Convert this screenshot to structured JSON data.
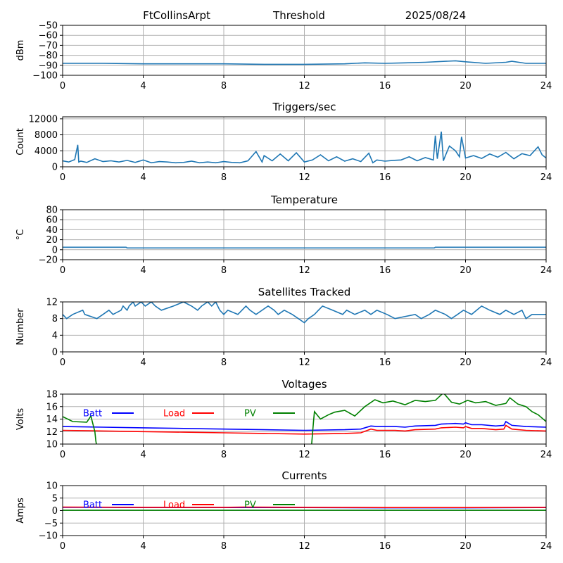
{
  "header": {
    "station": "FtCollinsArpt",
    "mode": "Threshold",
    "date": "2025/08/24"
  },
  "colors": {
    "series": "#1f77b4",
    "batt": "#0000ff",
    "load": "#ff0000",
    "pv": "#008000",
    "grid": "#b0b0b0"
  },
  "chart_data": [
    {
      "id": "threshold",
      "type": "line",
      "title": "",
      "xlabel": "",
      "ylabel": "dBm",
      "xlim": [
        0,
        24
      ],
      "ylim": [
        -100,
        -50
      ],
      "xticks": [
        0,
        4,
        8,
        12,
        16,
        20,
        24
      ],
      "yticks": [
        -100,
        -90,
        -80,
        -70,
        -60,
        -50
      ],
      "grid": true,
      "series": [
        {
          "color": "#1f77b4",
          "x": [
            0,
            2,
            4,
            6,
            8,
            10,
            12,
            14,
            15,
            16,
            17,
            18,
            19,
            19.5,
            20,
            21,
            22,
            22.3,
            23,
            24
          ],
          "y": [
            -88,
            -88,
            -88.5,
            -88.5,
            -88.5,
            -89,
            -89,
            -88.5,
            -87.5,
            -88,
            -87.5,
            -87,
            -86,
            -85.5,
            -86.5,
            -88,
            -87,
            -86,
            -88,
            -88
          ]
        }
      ]
    },
    {
      "id": "triggers",
      "type": "line",
      "title": "Triggers/sec",
      "xlabel": "",
      "ylabel": "Count",
      "xlim": [
        0,
        24
      ],
      "ylim": [
        0,
        12500
      ],
      "xticks": [
        0,
        4,
        8,
        12,
        16,
        20,
        24
      ],
      "yticks": [
        0,
        4000,
        8000,
        12000
      ],
      "grid": true,
      "series": [
        {
          "color": "#1f77b4",
          "x": [
            0,
            0.3,
            0.6,
            0.75,
            0.8,
            0.9,
            1.2,
            1.6,
            2.0,
            2.4,
            2.8,
            3.2,
            3.6,
            4.0,
            4.4,
            4.8,
            5.2,
            5.6,
            6.0,
            6.4,
            6.8,
            7.2,
            7.6,
            8.0,
            8.4,
            8.8,
            9.2,
            9.6,
            9.9,
            10.0,
            10.4,
            10.8,
            11.2,
            11.6,
            12.0,
            12.4,
            12.8,
            13.2,
            13.6,
            14.0,
            14.4,
            14.8,
            15.2,
            15.4,
            15.6,
            16.0,
            16.4,
            16.8,
            17.2,
            17.6,
            18.0,
            18.4,
            18.5,
            18.6,
            18.8,
            18.9,
            19.0,
            19.2,
            19.5,
            19.7,
            19.8,
            20.0,
            20.4,
            20.8,
            21.2,
            21.6,
            22.0,
            22.4,
            22.8,
            23.2,
            23.6,
            23.8,
            24.0
          ],
          "y": [
            1500,
            1200,
            1800,
            5500,
            1200,
            1400,
            1100,
            2000,
            1300,
            1500,
            1200,
            1600,
            1100,
            1700,
            1000,
            1300,
            1200,
            1000,
            1100,
            1400,
            1000,
            1200,
            1000,
            1300,
            1100,
            1000,
            1500,
            3800,
            1200,
            2800,
            1500,
            3200,
            1500,
            3500,
            1200,
            1700,
            3000,
            1500,
            2500,
            1400,
            2000,
            1300,
            3400,
            1000,
            1700,
            1400,
            1600,
            1700,
            2500,
            1500,
            2300,
            1700,
            7800,
            2000,
            8800,
            1500,
            2800,
            5200,
            4000,
            2500,
            7500,
            2200,
            2800,
            2100,
            3200,
            2400,
            3600,
            2000,
            3300,
            2800,
            5000,
            3000,
            2200
          ]
        }
      ]
    },
    {
      "id": "temperature",
      "type": "line",
      "title": "Temperature",
      "xlabel": "",
      "ylabel": "°C",
      "xlim": [
        0,
        24
      ],
      "ylim": [
        -20,
        80
      ],
      "xticks": [
        0,
        4,
        8,
        12,
        16,
        20,
        24
      ],
      "yticks": [
        -20,
        0,
        20,
        40,
        60,
        80
      ],
      "grid": true,
      "series": [
        {
          "color": "#1f77b4",
          "x": [
            0,
            3.15,
            3.2,
            18.45,
            18.5,
            24
          ],
          "y": [
            5,
            5,
            3.5,
            3.5,
            5,
            5
          ]
        }
      ]
    },
    {
      "id": "satellites",
      "type": "line",
      "title": "Satellites Tracked",
      "xlabel": "",
      "ylabel": "Number",
      "xlim": [
        0,
        24
      ],
      "ylim": [
        0,
        12
      ],
      "xticks": [
        0,
        4,
        8,
        12,
        16,
        20,
        24
      ],
      "yticks": [
        0,
        4,
        8,
        12
      ],
      "grid": true,
      "series": [
        {
          "color": "#1f77b4",
          "x": [
            0,
            0.2,
            0.5,
            1.0,
            1.1,
            1.7,
            2.0,
            2.3,
            2.5,
            2.9,
            3.0,
            3.2,
            3.3,
            3.5,
            3.6,
            3.9,
            4.1,
            4.4,
            4.6,
            4.9,
            5.5,
            6.0,
            6.4,
            6.7,
            6.9,
            7.2,
            7.4,
            7.6,
            7.8,
            8.0,
            8.2,
            8.7,
            9.1,
            9.3,
            9.6,
            10.2,
            10.5,
            10.7,
            11.0,
            11.4,
            11.7,
            12.0,
            12.2,
            12.5,
            12.7,
            12.9,
            13.4,
            13.9,
            14.1,
            14.5,
            15.0,
            15.3,
            15.6,
            16.1,
            16.5,
            17.5,
            17.8,
            18.2,
            18.5,
            19.0,
            19.3,
            19.6,
            19.9,
            20.3,
            20.8,
            21.2,
            21.7,
            22.0,
            22.4,
            22.8,
            23.0,
            23.3,
            23.6,
            24.0
          ],
          "y": [
            9,
            8,
            9,
            10,
            9,
            8,
            9,
            10,
            9,
            10,
            11,
            10,
            11,
            12,
            11,
            12,
            11,
            12,
            11,
            10,
            11,
            12,
            11,
            10,
            11,
            12,
            11,
            12,
            10,
            9,
            10,
            9,
            11,
            10,
            9,
            11,
            10,
            9,
            10,
            9,
            8,
            7,
            8,
            9,
            10,
            11,
            10,
            9,
            10,
            9,
            10,
            9,
            10,
            9,
            8,
            9,
            8,
            9,
            10,
            9,
            8,
            9,
            10,
            9,
            11,
            10,
            9,
            10,
            9,
            10,
            8,
            9,
            9,
            9
          ]
        }
      ]
    },
    {
      "id": "voltages",
      "type": "line",
      "title": "Voltages",
      "xlabel": "",
      "ylabel": "Volts",
      "xlim": [
        0,
        24
      ],
      "ylim": [
        10,
        18
      ],
      "xticks": [
        0,
        4,
        8,
        12,
        16,
        20,
        24
      ],
      "yticks": [
        10,
        12,
        14,
        16,
        18
      ],
      "grid": true,
      "legend": "upper-left",
      "series": [
        {
          "name": "Batt",
          "color": "#0000ff",
          "x": [
            0,
            2,
            4,
            6,
            8,
            10,
            12,
            14,
            14.8,
            15.3,
            15.6,
            16.5,
            17,
            17.5,
            18.5,
            18.8,
            19.5,
            19.9,
            20.0,
            20.3,
            20.8,
            21.5,
            21.9,
            22.0,
            22.3,
            23,
            24
          ],
          "y": [
            12.8,
            12.7,
            12.6,
            12.5,
            12.4,
            12.3,
            12.2,
            12.3,
            12.4,
            12.9,
            12.8,
            12.8,
            12.7,
            12.9,
            13.0,
            13.2,
            13.3,
            13.2,
            13.4,
            13.1,
            13.1,
            12.9,
            13.0,
            13.6,
            13.0,
            12.8,
            12.7
          ]
        },
        {
          "name": "Load",
          "color": "#ff0000",
          "x": [
            0,
            2,
            4,
            6,
            8,
            10,
            12,
            14,
            14.8,
            15.3,
            15.6,
            16.5,
            17,
            17.5,
            18.5,
            18.8,
            19.5,
            19.9,
            20.0,
            20.3,
            20.8,
            21.5,
            21.9,
            22.0,
            22.3,
            23,
            24
          ],
          "y": [
            12.2,
            12.1,
            12.0,
            11.9,
            11.8,
            11.7,
            11.6,
            11.7,
            11.8,
            12.4,
            12.2,
            12.2,
            12.1,
            12.3,
            12.4,
            12.6,
            12.7,
            12.6,
            12.8,
            12.5,
            12.5,
            12.3,
            12.4,
            13.0,
            12.4,
            12.2,
            12.1
          ]
        },
        {
          "name": "PV",
          "color": "#008000",
          "x": [
            0,
            0.5,
            1.2,
            1.4,
            1.6,
            1.65,
            1.7,
            12.35,
            12.45,
            12.5,
            12.8,
            13.2,
            13.5,
            14.0,
            14.5,
            15.0,
            15.5,
            15.9,
            16.4,
            17.0,
            17.5,
            18.0,
            18.5,
            18.9,
            19.3,
            19.7,
            20.1,
            20.5,
            21.0,
            21.5,
            22.0,
            22.2,
            22.6,
            23.0,
            23.3,
            23.6,
            24.0
          ],
          "y": [
            14.4,
            13.6,
            13.5,
            14.5,
            12.0,
            10.5,
            9.5,
            9.5,
            13.5,
            15.2,
            14.0,
            14.7,
            15.1,
            15.4,
            14.5,
            16.0,
            17.1,
            16.6,
            16.9,
            16.3,
            17.0,
            16.8,
            17.0,
            18.2,
            16.7,
            16.4,
            17.0,
            16.6,
            16.8,
            16.2,
            16.5,
            17.4,
            16.4,
            16.0,
            15.2,
            14.7,
            13.6
          ]
        }
      ]
    },
    {
      "id": "currents",
      "type": "line",
      "title": "Currents",
      "xlabel": "",
      "ylabel": "Amps",
      "xlim": [
        0,
        24
      ],
      "ylim": [
        -10,
        10
      ],
      "xticks": [
        0,
        4,
        8,
        12,
        16,
        20,
        24
      ],
      "yticks": [
        -10,
        -5,
        0,
        5,
        10
      ],
      "grid": true,
      "legend": "upper-left",
      "series": [
        {
          "name": "Batt",
          "color": "#0000ff",
          "x": [
            0,
            4,
            8,
            12,
            16,
            20,
            24
          ],
          "y": [
            1.3,
            1.2,
            1.2,
            1.2,
            1.1,
            1.1,
            1.2
          ]
        },
        {
          "name": "Load",
          "color": "#ff0000",
          "x": [
            0,
            4,
            8,
            9,
            12,
            16,
            20,
            24
          ],
          "y": [
            1.4,
            1.3,
            1.3,
            1.4,
            1.3,
            1.2,
            1.2,
            1.3
          ]
        },
        {
          "name": "PV",
          "color": "#008000",
          "x": [
            0,
            4,
            8,
            12,
            16,
            20,
            24
          ],
          "y": [
            0.1,
            0.1,
            0.1,
            0.1,
            0.1,
            0.1,
            0.1
          ]
        }
      ]
    }
  ]
}
